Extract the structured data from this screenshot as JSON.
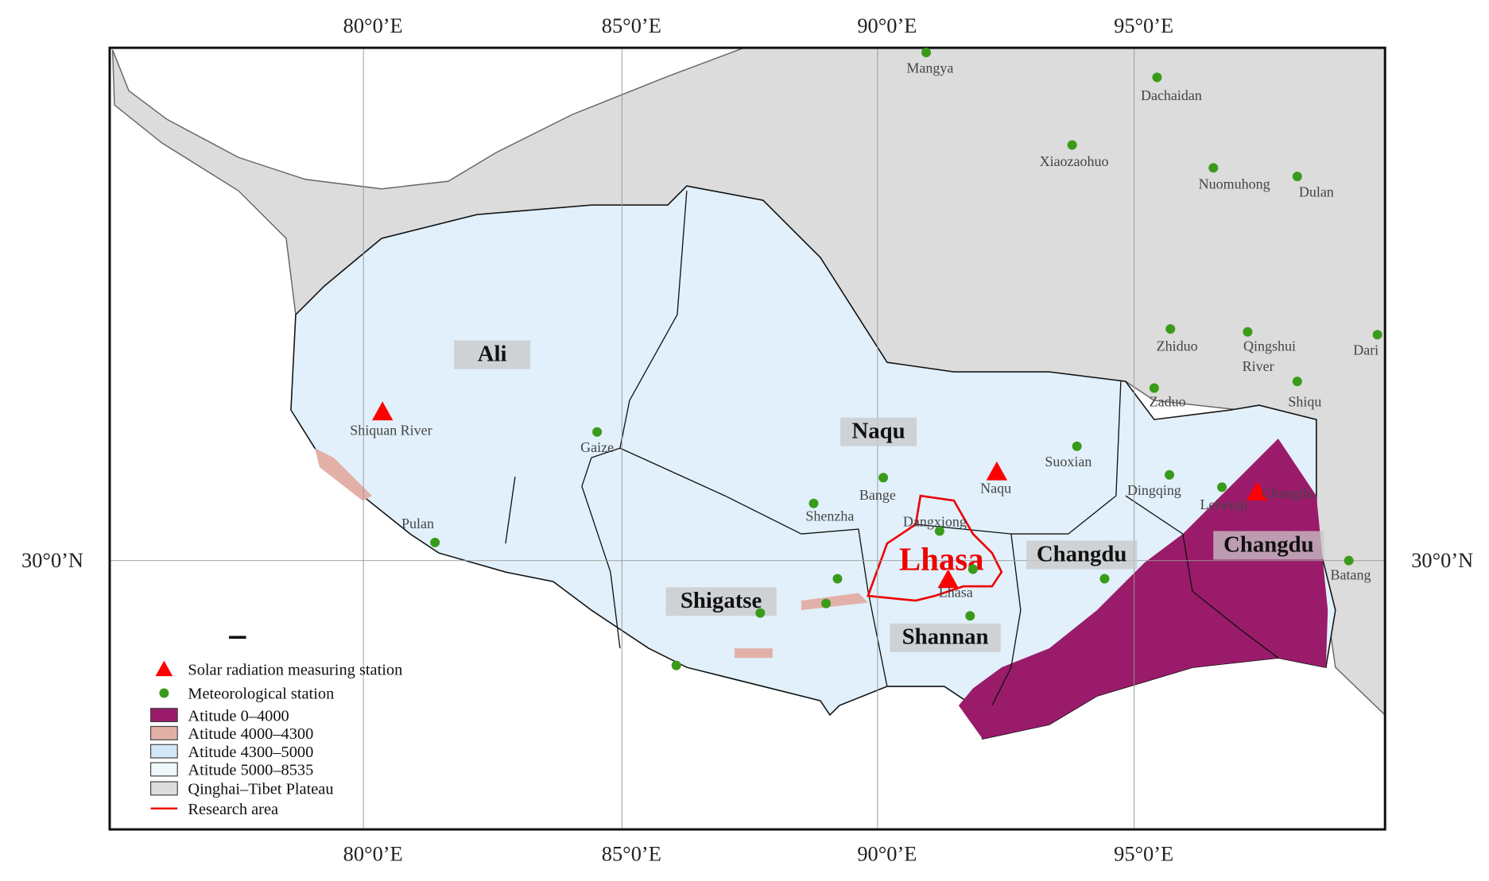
{
  "graticule": {
    "longitudes": [
      "80°0’E",
      "85°0’E",
      "90°0’E",
      "95°0’E"
    ],
    "latitude": "30°0’N"
  },
  "regions": [
    "Ali",
    "Naqu",
    "Shigatse",
    "Shannan",
    "Changdu",
    "Changdu"
  ],
  "research_area": "Lhasa",
  "solar_stations": [
    "Shiquan River",
    "Naqu",
    "Changdu",
    "Lhasa"
  ],
  "met_stations": [
    "Mangya",
    "Dachaidan",
    "Xiaozaohuo",
    "Nuomuhong",
    "Dulan",
    "Zhiduo",
    [
      "Qingshui",
      "River"
    ],
    "Dari",
    "Zaduo",
    "Shiqu",
    "Gaize",
    "Suoxian",
    "Dingqing",
    "Leiwuqi",
    "Bange",
    "Shenzha",
    "Dangxiong",
    "Pulan",
    "Batang"
  ],
  "legend": [
    "Solar radiation measuring station",
    "Meteorological station",
    "Atitude  0–4000",
    "Atitude 4000–4300",
    "Atitude 4300–5000",
    "Atitude 5000–8535",
    "Qinghai–Tibet Plateau",
    "Research area"
  ]
}
